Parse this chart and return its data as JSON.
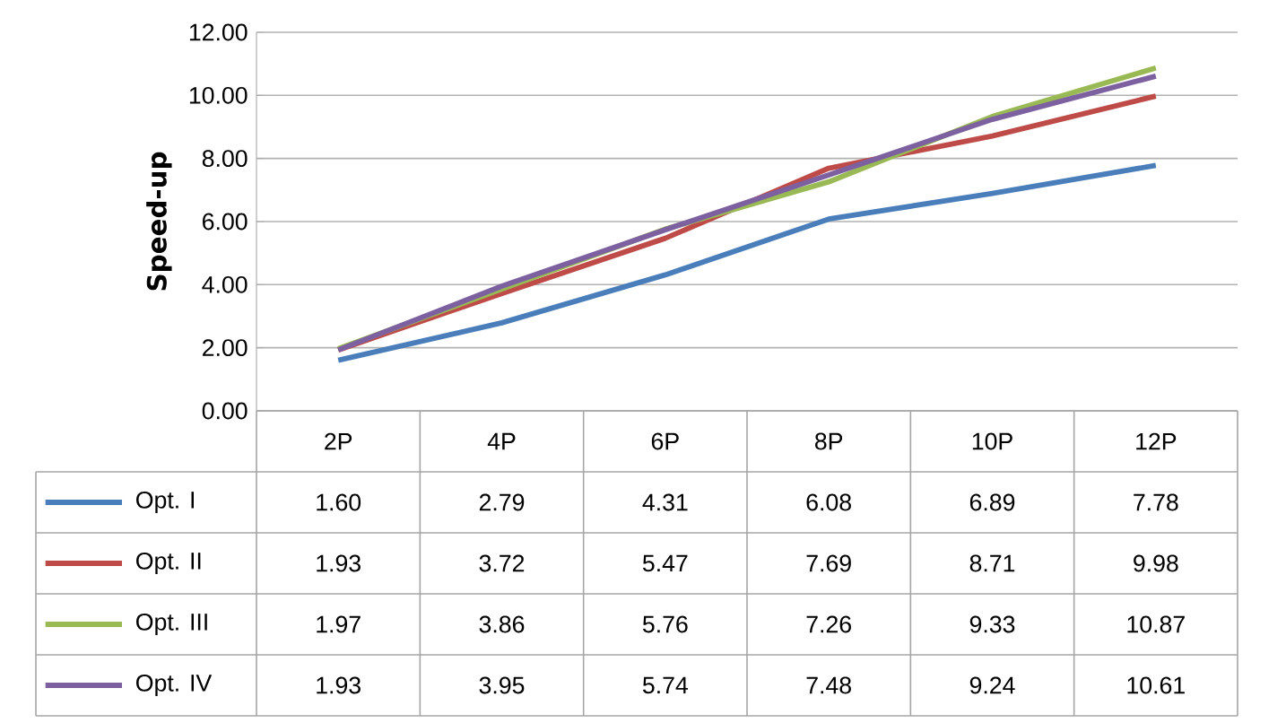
{
  "chart_data": {
    "type": "line",
    "ylabel": "Speed-up",
    "categories": [
      "2P",
      "4P",
      "6P",
      "8P",
      "10P",
      "12P"
    ],
    "series": [
      {
        "name": "Opt. I",
        "color": "#4a7ebb",
        "values": [
          1.6,
          2.79,
          4.31,
          6.08,
          6.89,
          7.78
        ],
        "value_labels": [
          "1.60",
          "2.79",
          "4.31",
          "6.08",
          "6.89",
          "7.78"
        ]
      },
      {
        "name": "Opt. II",
        "color": "#be4b48",
        "values": [
          1.93,
          3.72,
          5.47,
          7.69,
          8.71,
          9.98
        ],
        "value_labels": [
          "1.93",
          "3.72",
          "5.47",
          "7.69",
          "8.71",
          "9.98"
        ]
      },
      {
        "name": "Opt. III",
        "color": "#98b954",
        "values": [
          1.97,
          3.86,
          5.76,
          7.26,
          9.33,
          10.87
        ],
        "value_labels": [
          "1.97",
          "3.86",
          "5.76",
          "7.26",
          "9.33",
          "10.87"
        ]
      },
      {
        "name": "Opt. IV",
        "color": "#7d60a0",
        "values": [
          1.93,
          3.95,
          5.74,
          7.48,
          9.24,
          10.61
        ],
        "value_labels": [
          "1.93",
          "3.95",
          "5.74",
          "7.48",
          "9.24",
          "10.61"
        ]
      }
    ],
    "ylim": [
      0,
      12
    ],
    "yticks": [
      {
        "value": 0,
        "label": "0.00"
      },
      {
        "value": 2,
        "label": "2.00"
      },
      {
        "value": 4,
        "label": "4.00"
      },
      {
        "value": 6,
        "label": "6.00"
      },
      {
        "value": 8,
        "label": "8.00"
      },
      {
        "value": 10,
        "label": "10.00"
      },
      {
        "value": 12,
        "label": "12.00"
      }
    ],
    "grid": "y",
    "legend": "bottom",
    "marker": "none",
    "line_style": "solid"
  }
}
